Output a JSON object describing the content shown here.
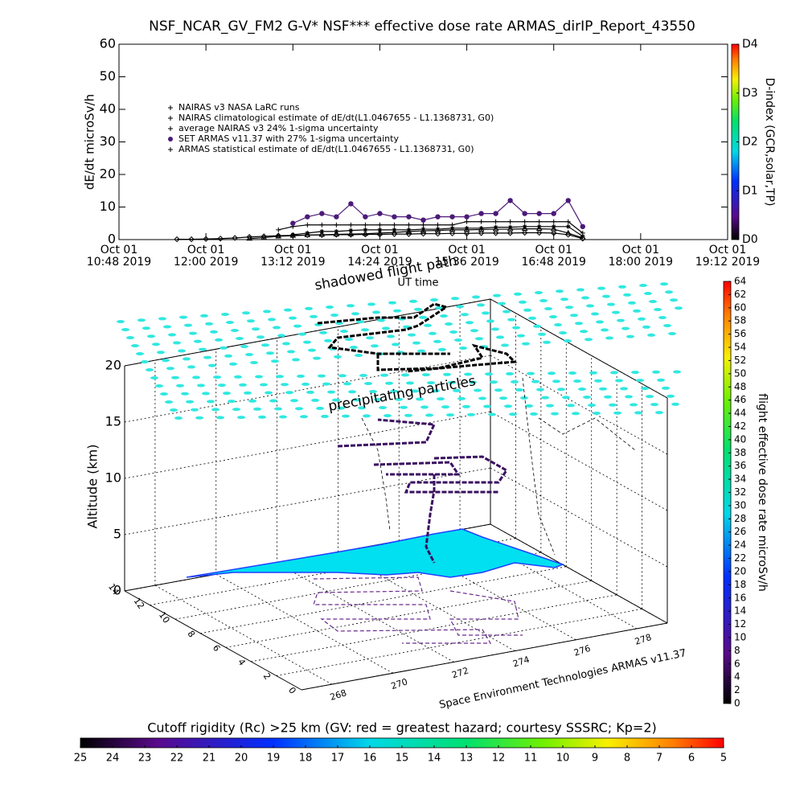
{
  "chart_data": [
    {
      "type": "timeseries",
      "title": "NSF_NCAR_GV_FM2 G-V* NSF*** effective dose rate ARMAS_dirIP_Report_43550",
      "y_label": "dE/dt microSv/h",
      "x_label": "UT time",
      "xlim": [
        10.8,
        19.2
      ],
      "xticks": [
        {
          "value": 10.8,
          "label": "Oct 01\n10:48 2019"
        },
        {
          "value": 12.0,
          "label": "Oct 01\n12:00 2019"
        },
        {
          "value": 13.2,
          "label": "Oct 01\n13:12 2019"
        },
        {
          "value": 14.4,
          "label": "Oct 01\n14:24 2019"
        },
        {
          "value": 15.6,
          "label": "Oct 01\n15:36 2019"
        },
        {
          "value": 16.8,
          "label": "Oct 01\n16:48 2019"
        },
        {
          "value": 18.0,
          "label": "Oct 01\n18:00 2019"
        },
        {
          "value": 19.2,
          "label": "Oct 01\n19:12 2019"
        }
      ],
      "ylim": [
        0,
        60
      ],
      "yticks": [
        0,
        10,
        20,
        30,
        40,
        50,
        60
      ],
      "x": [
        11.6,
        11.8,
        12.0,
        12.2,
        12.4,
        12.6,
        12.8,
        13.0,
        13.2,
        13.4,
        13.6,
        13.8,
        14.0,
        14.2,
        14.4,
        14.6,
        14.8,
        15.0,
        15.2,
        15.4,
        15.6,
        15.8,
        16.0,
        16.2,
        16.4,
        16.6,
        16.8,
        17.0,
        17.2
      ],
      "series": [
        {
          "name": "NAIRAS v3 NASA LaRC runs",
          "color": "#000000",
          "marker": "diamond",
          "values": [
            0.1,
            0.1,
            0.2,
            0.3,
            0.5,
            0.8,
            1.0,
            1.2,
            1.3,
            1.4,
            1.4,
            1.5,
            1.5,
            1.6,
            1.6,
            1.7,
            1.7,
            1.8,
            1.8,
            1.9,
            1.9,
            2.0,
            2.0,
            2.0,
            2.1,
            2.1,
            2.0,
            1.5,
            0.3
          ]
        },
        {
          "name": "NAIRAS climatological estimate of dE/dt(L1.0467655 - L1.1368731, G0)",
          "color": "#000000",
          "marker": "plus",
          "values": [
            null,
            null,
            null,
            null,
            null,
            null,
            null,
            3.0,
            4.0,
            4.5,
            4.5,
            4.5,
            4.5,
            4.5,
            4.5,
            4.5,
            4.5,
            4.5,
            4.5,
            4.5,
            5.5,
            5.5,
            5.5,
            5.5,
            5.5,
            5.5,
            5.5,
            5.5,
            2.0
          ]
        },
        {
          "name": "average NAIRAS v3 24% 1-sigma uncertainty",
          "color": "#000000",
          "marker": "triangle",
          "values": [
            null,
            null,
            null,
            null,
            null,
            0.3,
            0.6,
            1.0,
            1.2,
            1.4,
            1.5,
            1.6,
            1.7,
            1.8,
            2.0,
            2.2,
            2.5,
            2.7,
            2.8,
            3.0,
            3.0,
            3.1,
            3.2,
            3.2,
            3.3,
            3.3,
            3.2,
            2.0,
            0.5
          ]
        },
        {
          "name": "SET ARMAS v11.37 with 27% 1-sigma uncertainty",
          "color": "#4b1a78",
          "marker": "circle",
          "values": [
            null,
            null,
            null,
            null,
            null,
            null,
            null,
            null,
            5,
            7,
            8,
            7,
            11,
            7,
            8,
            7,
            7,
            6,
            7,
            7,
            7,
            8,
            8,
            12,
            8,
            8,
            8,
            12,
            4
          ]
        },
        {
          "name": "ARMAS statistical estimate of dE/dt(L1.0467655 - L1.1368731, G0)",
          "color": "#000000",
          "marker": "star",
          "values": [
            null,
            null,
            null,
            null,
            null,
            null,
            null,
            null,
            1.5,
            2,
            2.5,
            2.5,
            2.8,
            3,
            3,
            3,
            3,
            3.2,
            3.2,
            3.5,
            3.5,
            3.5,
            3.8,
            3.8,
            4,
            4,
            4,
            4,
            1
          ]
        }
      ]
    },
    {
      "type": "colorbar",
      "orient": "vertical",
      "place": "top-right",
      "label": "D-index (GCR,solar,TP)",
      "lim": [
        0,
        4
      ],
      "ticks": [
        {
          "value": 0,
          "label": "D0"
        },
        {
          "value": 1,
          "label": "D1"
        },
        {
          "value": 2,
          "label": "D2"
        },
        {
          "value": 3,
          "label": "D3"
        },
        {
          "value": 4,
          "label": "D4"
        }
      ]
    },
    {
      "type": "scene3d",
      "z_label": "Altitude (km)",
      "zlim": [
        0,
        20
      ],
      "zticks": [
        0,
        5,
        10,
        15,
        20
      ],
      "ylim": [
        0,
        14
      ],
      "yticks": [
        0,
        2,
        4,
        6,
        8,
        10,
        12,
        14
      ],
      "xlim": [
        267,
        279
      ],
      "xticks": [
        268,
        270,
        272,
        274,
        276,
        278
      ],
      "annotations": [
        "shadowed flight path",
        "precipitating particles",
        "Space Environment Technologies ARMAS v11.37"
      ]
    },
    {
      "type": "colorbar",
      "orient": "vertical",
      "place": "bottom-right",
      "label": "flight effective dose rate microSv/h",
      "lim": [
        0,
        64
      ],
      "ticks": [
        0,
        2,
        4,
        6,
        8,
        10,
        12,
        14,
        16,
        18,
        20,
        22,
        24,
        26,
        28,
        30,
        32,
        34,
        36,
        38,
        40,
        42,
        44,
        46,
        48,
        50,
        52,
        54,
        56,
        58,
        60,
        62,
        64
      ]
    },
    {
      "type": "colorbar",
      "orient": "horizontal",
      "place": "bottom",
      "label": "Cutoff rigidity (Rc) >25 km (GV: red = greatest hazard; courtesy SSSRC; Kp=2)",
      "lim": [
        25,
        5
      ],
      "ticks": [
        25,
        24,
        23,
        22,
        21,
        20,
        19,
        18,
        17,
        16,
        15,
        14,
        13,
        12,
        11,
        10,
        9,
        8,
        7,
        6,
        5
      ]
    }
  ]
}
